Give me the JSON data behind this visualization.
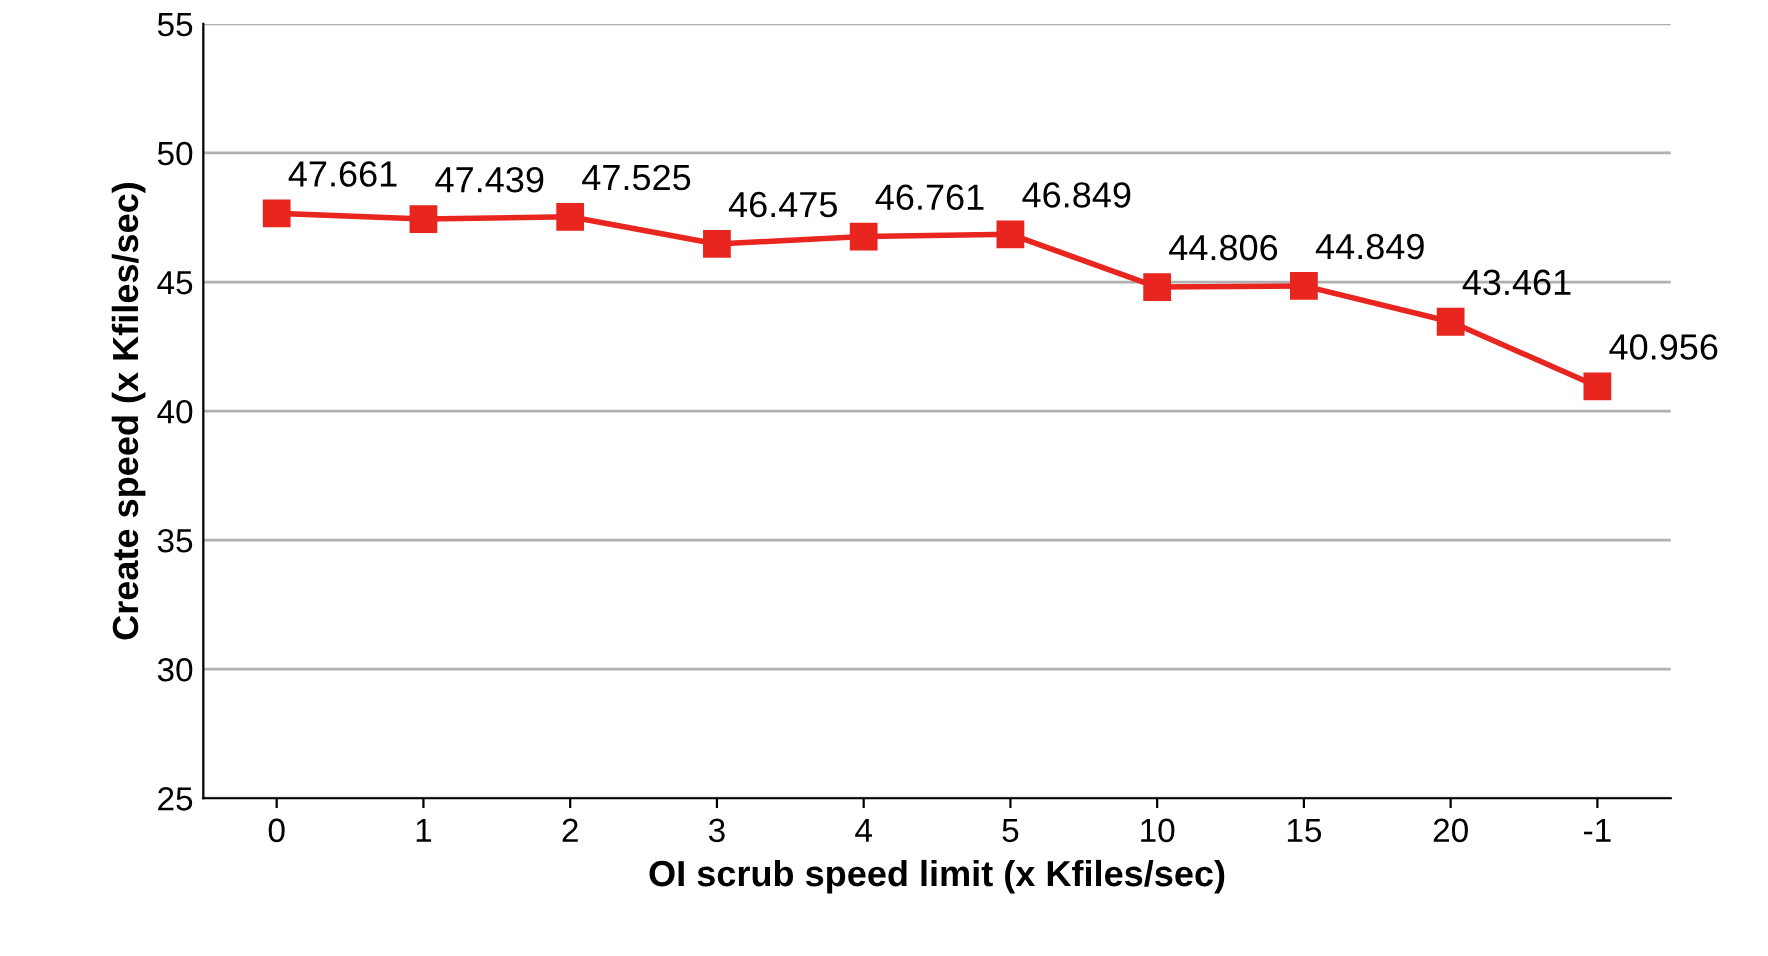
{
  "chart_data": {
    "type": "line",
    "xlabel": "OI scrub speed limit (x Kfiles/sec)",
    "ylabel": "Create speed (x Kfiles/sec)",
    "categories": [
      "0",
      "1",
      "2",
      "3",
      "4",
      "5",
      "10",
      "15",
      "20",
      "-1"
    ],
    "series": [
      {
        "color": "#e8251f",
        "values": [
          47.661,
          47.439,
          47.525,
          46.475,
          46.761,
          46.849,
          44.806,
          44.849,
          43.461,
          40.956
        ]
      }
    ],
    "ylim": [
      25,
      55
    ],
    "yticks": [
      25,
      30,
      35,
      40,
      45,
      50,
      55
    ],
    "grid": "y",
    "legend": false,
    "marker": "square",
    "line_style": "solid",
    "data_labels": true
  }
}
